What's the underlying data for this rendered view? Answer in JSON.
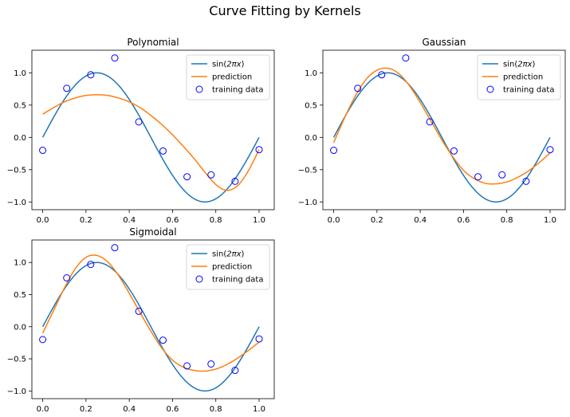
{
  "figure": {
    "title": "Curve Fitting by Kernels"
  },
  "chart_data": [
    {
      "type": "line",
      "title": "Polynomial",
      "xlim": [
        -0.05,
        1.07
      ],
      "ylim": [
        -1.12,
        1.35
      ],
      "xticks": [
        0.0,
        0.2,
        0.4,
        0.6,
        0.8,
        1.0
      ],
      "xtick_labels": [
        "0.0",
        "0.2",
        "0.4",
        "0.6",
        "0.8",
        "1.0"
      ],
      "yticks": [
        -1.0,
        -0.5,
        0.0,
        0.5,
        1.0
      ],
      "ytick_labels": [
        "−1.0",
        "−0.5",
        "0.0",
        "0.5",
        "1.0"
      ],
      "legend": {
        "position": "upper-right",
        "entries": [
          "sin(2πx)",
          "prediction",
          "training data"
        ]
      },
      "series": [
        {
          "name": "sin(2πx)",
          "kind": "line",
          "color": "#1f77b4",
          "function": "sin(2*pi*x)"
        },
        {
          "name": "prediction",
          "kind": "line",
          "color": "#ff7f0e",
          "x": [
            0.0,
            0.05,
            0.1,
            0.15,
            0.2,
            0.25,
            0.3,
            0.35,
            0.4,
            0.45,
            0.5,
            0.55,
            0.6,
            0.65,
            0.7,
            0.75,
            0.8,
            0.85,
            0.9,
            0.95,
            1.0
          ],
          "y": [
            0.36,
            0.46,
            0.55,
            0.61,
            0.65,
            0.66,
            0.65,
            0.61,
            0.55,
            0.46,
            0.34,
            0.2,
            0.04,
            -0.14,
            -0.33,
            -0.54,
            -0.73,
            -0.82,
            -0.75,
            -0.52,
            -0.19
          ]
        },
        {
          "name": "training data",
          "kind": "scatter",
          "color": "#0000ff",
          "x": [
            0.0,
            0.111,
            0.222,
            0.333,
            0.444,
            0.556,
            0.667,
            0.778,
            0.889,
            1.0
          ],
          "y": [
            -0.2,
            0.76,
            0.97,
            1.23,
            0.24,
            -0.21,
            -0.61,
            -0.58,
            -0.68,
            -0.19
          ]
        }
      ]
    },
    {
      "type": "line",
      "title": "Gaussian",
      "xlim": [
        -0.05,
        1.07
      ],
      "ylim": [
        -1.12,
        1.35
      ],
      "xticks": [
        0.0,
        0.2,
        0.4,
        0.6,
        0.8,
        1.0
      ],
      "xtick_labels": [
        "0.0",
        "0.2",
        "0.4",
        "0.6",
        "0.8",
        "1.0"
      ],
      "yticks": [
        -1.0,
        -0.5,
        0.0,
        0.5,
        1.0
      ],
      "ytick_labels": [
        "−1.0",
        "−0.5",
        "0.0",
        "0.5",
        "1.0"
      ],
      "legend": {
        "position": "upper-right",
        "entries": [
          "sin(2πx)",
          "prediction",
          "training data"
        ]
      },
      "series": [
        {
          "name": "sin(2πx)",
          "kind": "line",
          "color": "#1f77b4",
          "function": "sin(2*pi*x)"
        },
        {
          "name": "prediction",
          "kind": "line",
          "color": "#ff7f0e",
          "x": [
            0.0,
            0.05,
            0.1,
            0.15,
            0.2,
            0.25,
            0.3,
            0.35,
            0.4,
            0.45,
            0.5,
            0.55,
            0.6,
            0.65,
            0.7,
            0.75,
            0.8,
            0.85,
            0.9,
            0.95,
            1.0
          ],
          "y": [
            -0.08,
            0.3,
            0.64,
            0.9,
            1.04,
            1.07,
            0.99,
            0.8,
            0.54,
            0.25,
            -0.04,
            -0.3,
            -0.51,
            -0.64,
            -0.71,
            -0.72,
            -0.69,
            -0.62,
            -0.52,
            -0.39,
            -0.24
          ]
        },
        {
          "name": "training data",
          "kind": "scatter",
          "color": "#0000ff",
          "x": [
            0.0,
            0.111,
            0.222,
            0.333,
            0.444,
            0.556,
            0.667,
            0.778,
            0.889,
            1.0
          ],
          "y": [
            -0.2,
            0.76,
            0.97,
            1.23,
            0.24,
            -0.21,
            -0.61,
            -0.58,
            -0.68,
            -0.19
          ]
        }
      ]
    },
    {
      "type": "line",
      "title": "Sigmoidal",
      "xlim": [
        -0.05,
        1.07
      ],
      "ylim": [
        -1.12,
        1.35
      ],
      "xticks": [
        0.0,
        0.2,
        0.4,
        0.6,
        0.8,
        1.0
      ],
      "xtick_labels": [
        "0.0",
        "0.2",
        "0.4",
        "0.6",
        "0.8",
        "1.0"
      ],
      "yticks": [
        -1.0,
        -0.5,
        0.0,
        0.5,
        1.0
      ],
      "ytick_labels": [
        "−1.0",
        "−0.5",
        "0.0",
        "0.5",
        "1.0"
      ],
      "legend": {
        "position": "upper-right",
        "entries": [
          "sin(2πx)",
          "prediction",
          "training data"
        ]
      },
      "series": [
        {
          "name": "sin(2πx)",
          "kind": "line",
          "color": "#1f77b4",
          "function": "sin(2*pi*x)"
        },
        {
          "name": "prediction",
          "kind": "line",
          "color": "#ff7f0e",
          "x": [
            0.0,
            0.05,
            0.1,
            0.15,
            0.2,
            0.25,
            0.3,
            0.35,
            0.4,
            0.45,
            0.5,
            0.55,
            0.6,
            0.65,
            0.7,
            0.75,
            0.8,
            0.85,
            0.9,
            0.95,
            1.0
          ],
          "y": [
            -0.1,
            0.25,
            0.6,
            0.9,
            1.08,
            1.11,
            1.01,
            0.8,
            0.52,
            0.22,
            -0.07,
            -0.33,
            -0.52,
            -0.63,
            -0.68,
            -0.69,
            -0.66,
            -0.59,
            -0.49,
            -0.37,
            -0.24
          ]
        },
        {
          "name": "training data",
          "kind": "scatter",
          "color": "#0000ff",
          "x": [
            0.0,
            0.111,
            0.222,
            0.333,
            0.444,
            0.556,
            0.667,
            0.778,
            0.889,
            1.0
          ],
          "y": [
            -0.2,
            0.76,
            0.97,
            1.23,
            0.24,
            -0.21,
            -0.61,
            -0.58,
            -0.68,
            -0.19
          ]
        }
      ]
    }
  ]
}
